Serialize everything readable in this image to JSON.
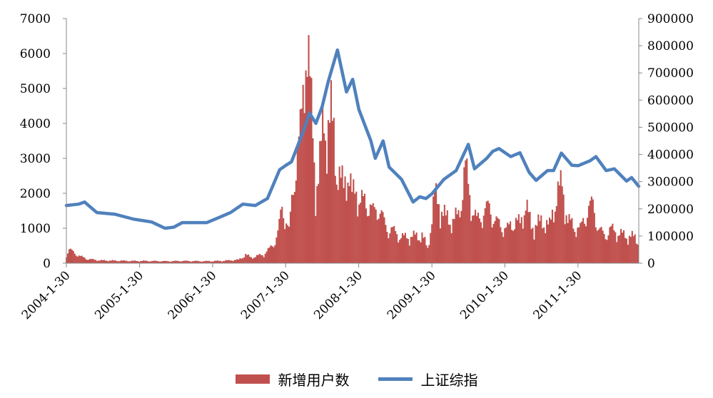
{
  "chart_data": {
    "type": "bar+line",
    "title": "",
    "x_start": "2004-01-30",
    "x_end": "2011-11-30",
    "x_tick_labels": [
      "2004-1-30",
      "2005-1-30",
      "2006-1-30",
      "2007-1-30",
      "2008-1-30",
      "2009-1-30",
      "2010-1-30",
      "2011-1-30"
    ],
    "y_left": {
      "min": 0,
      "max": 7000,
      "ticks": [
        0,
        1000,
        2000,
        3000,
        4000,
        5000,
        6000,
        7000
      ]
    },
    "y_right": {
      "min": 0,
      "max": 900000,
      "ticks": [
        0,
        100000,
        200000,
        300000,
        400000,
        500000,
        600000,
        700000,
        800000,
        900000
      ]
    },
    "grid": false,
    "legend_position": "bottom",
    "series": [
      {
        "name": "新增用户数",
        "kind": "bar",
        "axis": "right",
        "color": "#C0504D",
        "points": [
          [
            "2004-01-30",
            30000
          ],
          [
            "2004-02-13",
            48000
          ],
          [
            "2004-03-12",
            36000
          ],
          [
            "2004-04-09",
            24000
          ],
          [
            "2004-05-14",
            15000
          ],
          [
            "2004-07-16",
            10000
          ],
          [
            "2004-10-15",
            9000
          ],
          [
            "2004-12-17",
            8000
          ],
          [
            "2005-03-11",
            8000
          ],
          [
            "2005-06-10",
            7000
          ],
          [
            "2005-09-09",
            8000
          ],
          [
            "2005-12-09",
            7000
          ],
          [
            "2006-03-10",
            8000
          ],
          [
            "2006-06-09",
            12000
          ],
          [
            "2006-07-14",
            30000
          ],
          [
            "2006-08-11",
            20000
          ],
          [
            "2006-10-13",
            32000
          ],
          [
            "2006-11-10",
            50000
          ],
          [
            "2006-12-08",
            80000
          ],
          [
            "2006-12-22",
            105000
          ],
          [
            "2007-01-12",
            200000
          ],
          [
            "2007-01-26",
            170000
          ],
          [
            "2007-02-16",
            110000
          ],
          [
            "2007-03-09",
            275000
          ],
          [
            "2007-03-23",
            370000
          ],
          [
            "2007-04-13",
            450000
          ],
          [
            "2007-04-27",
            600000
          ],
          [
            "2007-05-11",
            820000
          ],
          [
            "2007-05-25",
            700000
          ],
          [
            "2007-06-15",
            460000
          ],
          [
            "2007-06-29",
            270000
          ],
          [
            "2007-07-13",
            300000
          ],
          [
            "2007-07-27",
            410000
          ],
          [
            "2007-08-10",
            530000
          ],
          [
            "2007-08-24",
            455000
          ],
          [
            "2007-09-14",
            520000
          ],
          [
            "2007-09-28",
            460000
          ],
          [
            "2007-10-12",
            345000
          ],
          [
            "2007-10-26",
            300000
          ],
          [
            "2007-11-16",
            270000
          ],
          [
            "2007-11-30",
            330000
          ],
          [
            "2007-12-14",
            300000
          ],
          [
            "2007-12-28",
            235000
          ],
          [
            "2008-01-18",
            280000
          ],
          [
            "2008-02-01",
            210000
          ],
          [
            "2008-03-07",
            225000
          ],
          [
            "2008-04-11",
            180000
          ],
          [
            "2008-05-09",
            200000
          ],
          [
            "2008-06-13",
            130000
          ],
          [
            "2008-07-11",
            120000
          ],
          [
            "2008-08-15",
            100000
          ],
          [
            "2008-09-12",
            90000
          ],
          [
            "2008-10-10",
            95000
          ],
          [
            "2008-11-14",
            95000
          ],
          [
            "2008-12-12",
            100000
          ],
          [
            "2009-01-09",
            50000
          ],
          [
            "2009-02-13",
            240000
          ],
          [
            "2009-03-13",
            200000
          ],
          [
            "2009-04-10",
            160000
          ],
          [
            "2009-05-15",
            150000
          ],
          [
            "2009-06-12",
            170000
          ],
          [
            "2009-07-17",
            340000
          ],
          [
            "2009-08-14",
            210000
          ],
          [
            "2009-09-11",
            150000
          ],
          [
            "2009-10-16",
            180000
          ],
          [
            "2009-11-13",
            200000
          ],
          [
            "2009-12-11",
            150000
          ],
          [
            "2010-01-15",
            130000
          ],
          [
            "2010-02-12",
            120000
          ],
          [
            "2010-03-12",
            150000
          ],
          [
            "2010-04-16",
            140000
          ],
          [
            "2010-05-14",
            210000
          ],
          [
            "2010-06-11",
            130000
          ],
          [
            "2010-07-16",
            140000
          ],
          [
            "2010-08-13",
            150000
          ],
          [
            "2010-09-10",
            130000
          ],
          [
            "2010-10-15",
            240000
          ],
          [
            "2010-11-12",
            280000
          ],
          [
            "2010-12-10",
            150000
          ],
          [
            "2011-01-14",
            130000
          ],
          [
            "2011-02-11",
            120000
          ],
          [
            "2011-03-11",
            180000
          ],
          [
            "2011-04-15",
            210000
          ],
          [
            "2011-05-13",
            120000
          ],
          [
            "2011-06-10",
            100000
          ],
          [
            "2011-07-15",
            120000
          ],
          [
            "2011-08-12",
            110000
          ],
          [
            "2011-09-09",
            100000
          ],
          [
            "2011-10-14",
            95000
          ],
          [
            "2011-11-11",
            90000
          ],
          [
            "2011-11-30",
            80000
          ]
        ]
      },
      {
        "name": "上证综指",
        "kind": "line",
        "axis": "left",
        "color": "#4F81BD",
        "points": [
          [
            "2004-01-30",
            1650
          ],
          [
            "2004-03-31",
            1690
          ],
          [
            "2004-04-30",
            1750
          ],
          [
            "2004-06-30",
            1450
          ],
          [
            "2004-09-30",
            1400
          ],
          [
            "2004-12-31",
            1260
          ],
          [
            "2005-03-31",
            1180
          ],
          [
            "2005-06-06",
            1000
          ],
          [
            "2005-07-20",
            1030
          ],
          [
            "2005-08-31",
            1160
          ],
          [
            "2005-12-31",
            1160
          ],
          [
            "2006-02-28",
            1300
          ],
          [
            "2006-04-30",
            1450
          ],
          [
            "2006-06-30",
            1690
          ],
          [
            "2006-08-31",
            1650
          ],
          [
            "2006-10-31",
            1850
          ],
          [
            "2006-12-31",
            2675
          ],
          [
            "2007-01-31",
            2800
          ],
          [
            "2007-02-28",
            2900
          ],
          [
            "2007-04-30",
            3800
          ],
          [
            "2007-05-29",
            4300
          ],
          [
            "2007-06-30",
            4000
          ],
          [
            "2007-07-31",
            4470
          ],
          [
            "2007-08-31",
            5200
          ],
          [
            "2007-10-16",
            6100
          ],
          [
            "2007-11-30",
            4900
          ],
          [
            "2007-12-31",
            5260
          ],
          [
            "2008-01-31",
            4400
          ],
          [
            "2008-03-31",
            3500
          ],
          [
            "2008-04-22",
            3000
          ],
          [
            "2008-05-31",
            3500
          ],
          [
            "2008-06-30",
            2750
          ],
          [
            "2008-08-31",
            2400
          ],
          [
            "2008-10-28",
            1750
          ],
          [
            "2008-11-30",
            1900
          ],
          [
            "2008-12-31",
            1850
          ],
          [
            "2009-01-31",
            1990
          ],
          [
            "2009-03-31",
            2400
          ],
          [
            "2009-05-31",
            2650
          ],
          [
            "2009-07-31",
            3400
          ],
          [
            "2009-08-31",
            2700
          ],
          [
            "2009-10-31",
            3000
          ],
          [
            "2009-11-30",
            3200
          ],
          [
            "2009-12-31",
            3280
          ],
          [
            "2010-02-28",
            3050
          ],
          [
            "2010-04-15",
            3160
          ],
          [
            "2010-05-31",
            2600
          ],
          [
            "2010-07-05",
            2370
          ],
          [
            "2010-08-31",
            2650
          ],
          [
            "2010-09-30",
            2650
          ],
          [
            "2010-11-08",
            3150
          ],
          [
            "2010-12-31",
            2800
          ],
          [
            "2011-01-31",
            2790
          ],
          [
            "2011-03-31",
            2930
          ],
          [
            "2011-04-30",
            3050
          ],
          [
            "2011-06-20",
            2650
          ],
          [
            "2011-07-31",
            2700
          ],
          [
            "2011-09-30",
            2350
          ],
          [
            "2011-10-25",
            2450
          ],
          [
            "2011-11-30",
            2200
          ]
        ]
      }
    ]
  }
}
